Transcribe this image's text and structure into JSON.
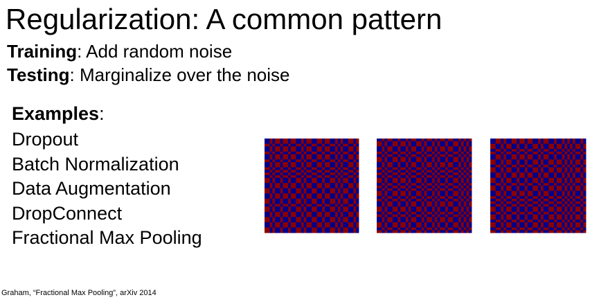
{
  "slide": {
    "title": "Regularization: A common pattern",
    "training": {
      "label": "Training",
      "text": ": Add random noise"
    },
    "testing": {
      "label": "Testing",
      "text": ": Marginalize over the noise"
    },
    "examples": {
      "label": "Examples",
      "colon": ":",
      "items": [
        "Dropout",
        "Batch Normalization",
        "Data Augmentation",
        "DropConnect",
        "Fractional Max Pooling"
      ]
    },
    "citation": "Graham, “Fractional Max Pooling”, arXiv 2014"
  },
  "figure": {
    "colors": {
      "red": "#8b0000",
      "blue": "#00008b"
    },
    "grids": [
      {
        "cols": [
          1,
          1,
          1,
          1,
          1,
          1,
          1,
          1,
          1,
          1,
          1,
          1,
          1,
          1,
          1,
          1,
          1,
          1,
          1,
          1,
          1,
          1,
          1,
          1,
          1,
          1,
          1,
          1,
          1,
          1,
          1,
          1,
          1,
          1,
          1,
          1
        ],
        "rows": [
          1,
          1,
          1,
          1,
          1,
          1,
          1,
          1,
          1,
          1,
          1,
          1,
          1,
          1,
          1,
          1,
          1,
          1,
          1,
          1,
          1,
          1,
          1,
          1,
          1,
          1,
          1,
          1,
          1,
          1,
          1,
          1,
          1,
          1,
          1,
          1
        ]
      },
      {
        "cols": [
          1,
          1,
          1,
          1,
          1,
          1,
          1,
          1,
          1,
          1,
          1,
          1,
          1,
          1,
          1,
          1,
          1,
          1,
          1,
          1,
          1,
          1,
          1,
          1,
          1,
          1,
          1,
          1,
          1,
          1,
          1,
          1,
          1,
          1,
          1,
          1
        ],
        "rows": [
          1,
          1,
          1,
          1,
          1,
          1,
          1,
          1,
          1,
          1,
          1,
          1,
          1,
          1,
          1,
          1,
          1,
          1,
          1,
          1,
          1,
          1,
          1,
          1,
          1,
          1,
          1,
          1,
          1,
          1,
          1,
          1,
          1,
          1,
          1,
          1
        ]
      },
      {
        "cols": [
          1,
          1,
          1,
          1,
          1,
          1,
          1,
          1,
          1,
          1,
          1,
          1,
          1,
          1,
          1,
          1,
          1,
          1,
          1,
          1,
          1,
          1,
          1,
          1,
          1,
          1,
          1,
          1,
          1,
          1,
          1,
          1,
          1,
          1,
          1,
          1
        ],
        "rows": [
          1,
          1,
          1,
          1,
          1,
          1,
          1,
          1,
          1,
          1,
          1,
          1,
          1,
          1,
          1,
          1,
          1,
          1,
          1,
          1,
          1,
          1,
          1,
          1,
          1,
          1,
          1,
          1,
          1,
          1,
          1,
          1,
          1,
          1,
          1,
          1
        ]
      }
    ]
  }
}
